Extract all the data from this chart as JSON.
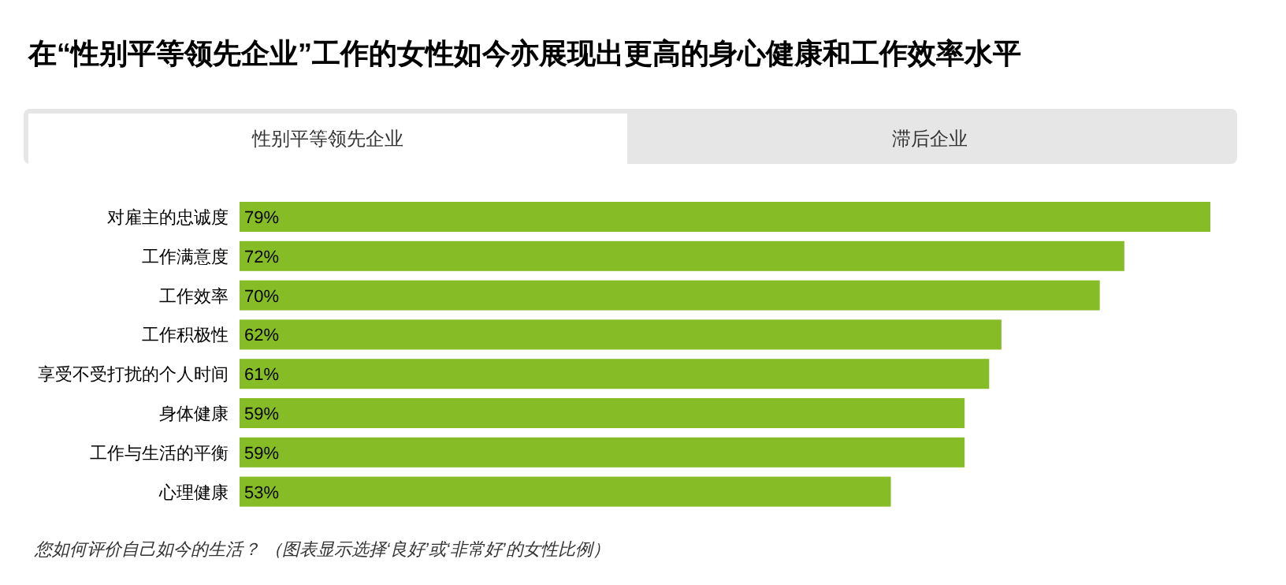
{
  "chart_data": {
    "type": "bar",
    "orientation": "horizontal",
    "title": "在“性别平等领先企业”工作的女性如今亦展现出更高的身心健康和工作效率水平",
    "categories": [
      "对雇主的忠诚度",
      "工作满意度",
      "工作效率",
      "工作积极性",
      "享受不受打扰的个人时间",
      "身体健康",
      "工作与生活的平衡",
      "心理健康"
    ],
    "values": [
      79,
      72,
      70,
      62,
      61,
      59,
      59,
      53
    ],
    "value_labels": [
      "79%",
      "72%",
      "70%",
      "62%",
      "61%",
      "59%",
      "59%",
      "53%"
    ],
    "color": "#86bc25",
    "annotations": [
      "性别平等领先企业",
      "滞后企业",
      "您如何评价自己如今的生活？ （图表显示选择‘良好’或‘非常好’的女性比例）"
    ]
  }
}
